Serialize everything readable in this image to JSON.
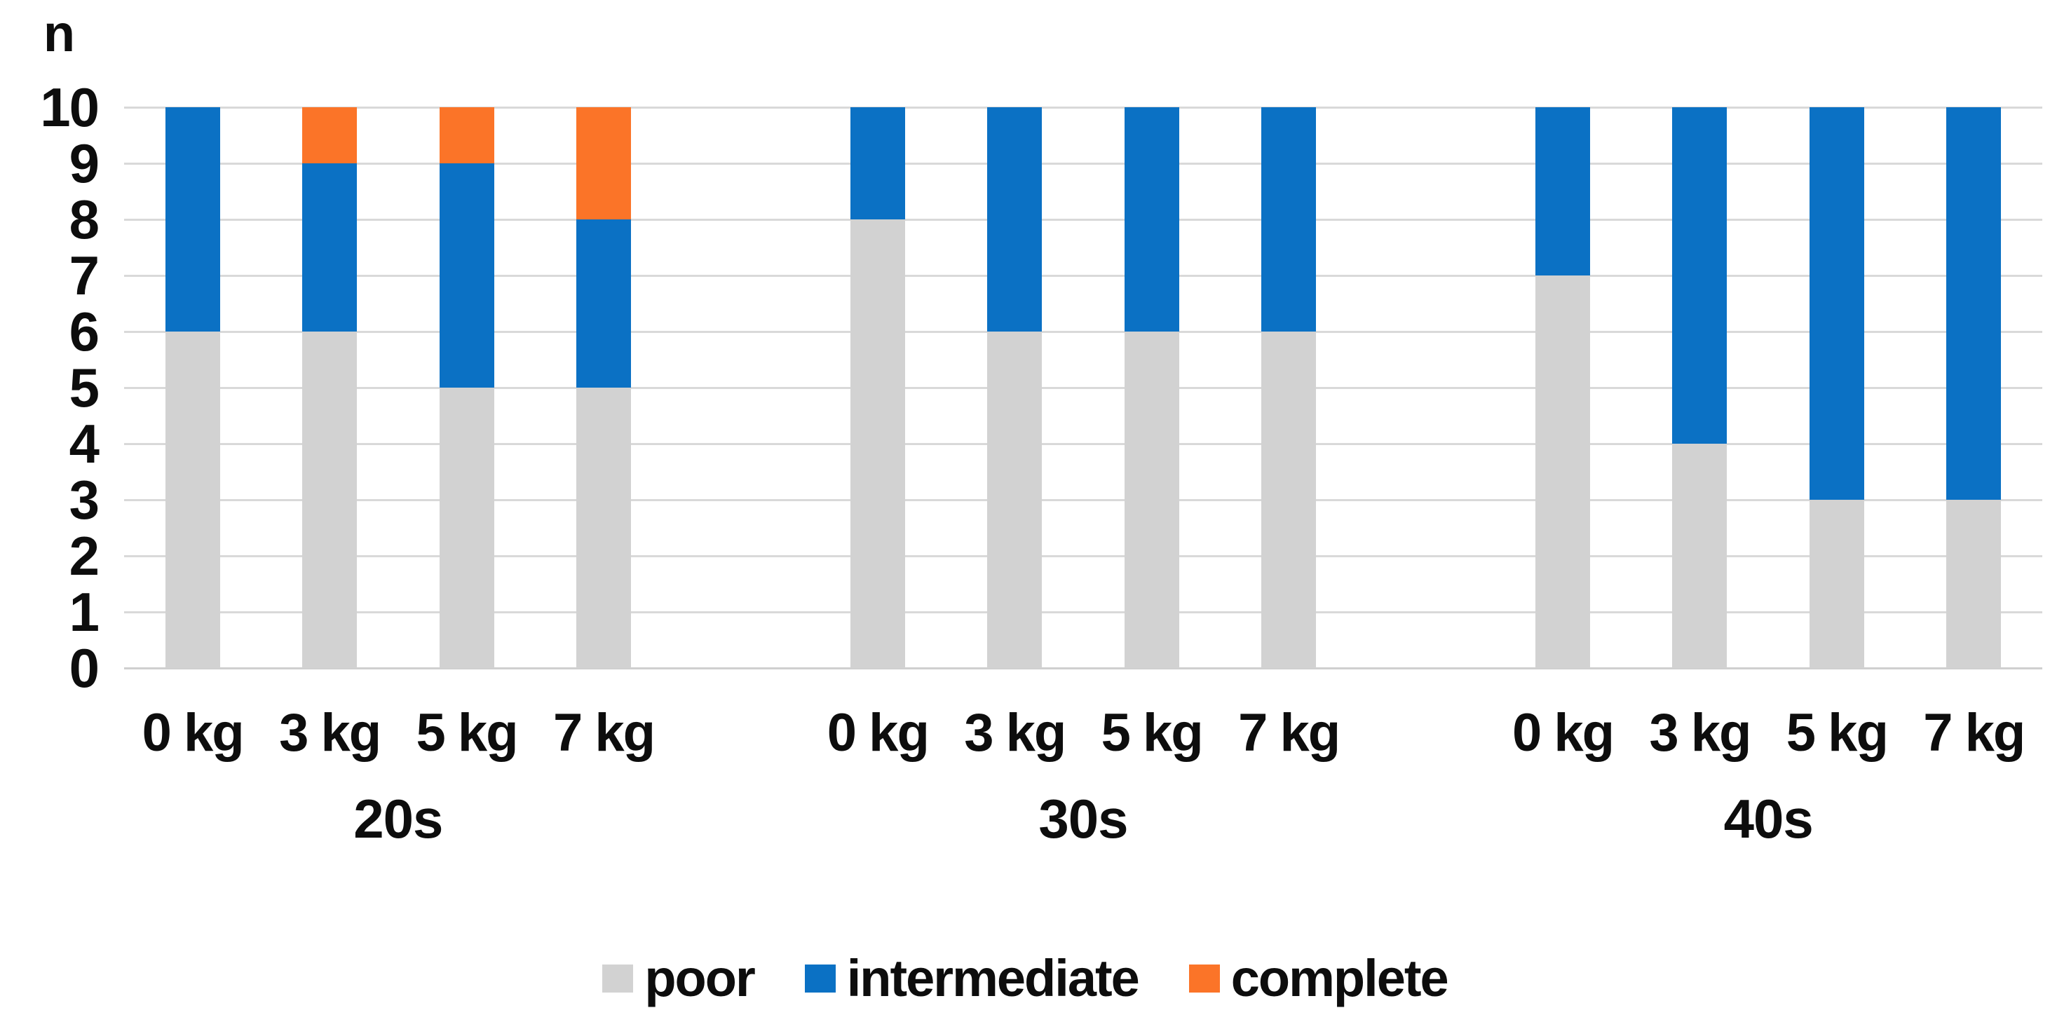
{
  "chart_data": {
    "type": "bar",
    "stacked": true,
    "title": "",
    "ylabel": "n",
    "xlabel": "",
    "ylim": [
      0,
      10
    ],
    "yticks": [
      0,
      1,
      2,
      3,
      4,
      5,
      6,
      7,
      8,
      9,
      10
    ],
    "grid": true,
    "legend_position": "bottom",
    "series_names": [
      "poor",
      "intermediate",
      "complete"
    ],
    "groups": [
      {
        "label": "20s",
        "categories": [
          "0 kg",
          "3 kg",
          "5 kg",
          "7 kg"
        ],
        "series": [
          {
            "name": "poor",
            "values": [
              6,
              6,
              5,
              5
            ]
          },
          {
            "name": "intermediate",
            "values": [
              4,
              3,
              4,
              3
            ]
          },
          {
            "name": "complete",
            "values": [
              0,
              1,
              1,
              2
            ]
          }
        ]
      },
      {
        "label": "30s",
        "categories": [
          "0 kg",
          "3 kg",
          "5 kg",
          "7 kg"
        ],
        "series": [
          {
            "name": "poor",
            "values": [
              8,
              6,
              6,
              6
            ]
          },
          {
            "name": "intermediate",
            "values": [
              2,
              4,
              4,
              4
            ]
          },
          {
            "name": "complete",
            "values": [
              0,
              0,
              0,
              0
            ]
          }
        ]
      },
      {
        "label": "40s",
        "categories": [
          "0 kg",
          "3 kg",
          "5 kg",
          "7 kg"
        ],
        "series": [
          {
            "name": "poor",
            "values": [
              7,
              4,
              3,
              3
            ]
          },
          {
            "name": "intermediate",
            "values": [
              3,
              6,
              7,
              7
            ]
          },
          {
            "name": "complete",
            "values": [
              0,
              0,
              0,
              0
            ]
          }
        ]
      }
    ],
    "legend": [
      {
        "label": "poor",
        "color": "#d2d2d2"
      },
      {
        "label": "intermediate",
        "color": "#0b71c4"
      },
      {
        "label": "complete",
        "color": "#fb7428"
      }
    ],
    "colors": {
      "poor": "#d2d2d2",
      "intermediate": "#0b71c4",
      "complete": "#fb7428",
      "gridline": "#d9d9d9",
      "axis_line": "#cfcfcf",
      "text": "#0d0d0d",
      "background": "#ffffff"
    }
  }
}
